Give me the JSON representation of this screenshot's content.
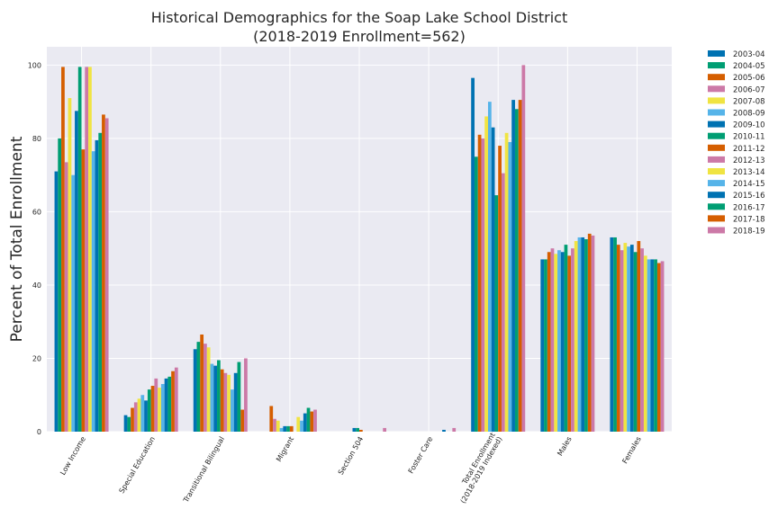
{
  "chart_data": {
    "type": "bar",
    "title": "Historical Demographics for the Soap Lake School District",
    "subtitle": "(2018-2019 Enrollment=562)",
    "xlabel": "",
    "ylabel": "Percent of Total Enrollment",
    "ylim": [
      0,
      105
    ],
    "yticks": [
      "0",
      "20",
      "40",
      "60",
      "80",
      "100"
    ],
    "grid": true,
    "legend_position": "outside-right",
    "categories": [
      [
        "Low Income"
      ],
      [
        "Special Education"
      ],
      [
        "Transitional Bilingual"
      ],
      [
        "Migrant"
      ],
      [
        "Section 504"
      ],
      [
        "Foster Care"
      ],
      [
        "Total Enrollment",
        "(2018-2019 Indexed)"
      ],
      [
        "Males"
      ],
      [
        "Females"
      ]
    ],
    "series": [
      {
        "name": "2003-04",
        "color": "#0072B2",
        "values": [
          71,
          4.5,
          22.5,
          0,
          0,
          0,
          96.5,
          47,
          53
        ]
      },
      {
        "name": "2004-05",
        "color": "#009E73",
        "values": [
          80,
          4,
          24.5,
          0,
          0,
          0,
          75,
          47,
          53
        ]
      },
      {
        "name": "2005-06",
        "color": "#D55E00",
        "values": [
          99.5,
          6.5,
          26.5,
          7,
          0,
          0,
          81,
          49,
          51
        ]
      },
      {
        "name": "2006-07",
        "color": "#CC79A7",
        "values": [
          73.5,
          8,
          24,
          3.5,
          0,
          0,
          80,
          50,
          49.5
        ]
      },
      {
        "name": "2007-08",
        "color": "#F0E442",
        "values": [
          91,
          9,
          23,
          3,
          0,
          0,
          86,
          48.5,
          51.5
        ]
      },
      {
        "name": "2008-09",
        "color": "#56B4E9",
        "values": [
          70,
          10,
          18.5,
          1,
          0,
          0,
          90,
          49.5,
          50.5
        ]
      },
      {
        "name": "2009-10",
        "color": "#0072B2",
        "values": [
          87.5,
          8.5,
          18,
          1.5,
          1,
          0,
          83,
          49,
          51
        ]
      },
      {
        "name": "2010-11",
        "color": "#009E73",
        "values": [
          99.5,
          11.5,
          19.5,
          1.5,
          1,
          0,
          64.5,
          51,
          49
        ]
      },
      {
        "name": "2011-12",
        "color": "#D55E00",
        "values": [
          77,
          12.5,
          17,
          1.5,
          0.5,
          0,
          78,
          48,
          52
        ]
      },
      {
        "name": "2012-13",
        "color": "#CC79A7",
        "values": [
          99.5,
          14.5,
          16,
          0,
          0,
          0,
          70.5,
          50,
          50
        ]
      },
      {
        "name": "2013-14",
        "color": "#F0E442",
        "values": [
          99.5,
          12,
          15.5,
          4,
          0,
          0,
          81.5,
          52,
          48
        ]
      },
      {
        "name": "2014-15",
        "color": "#56B4E9",
        "values": [
          76.5,
          13,
          11.5,
          3,
          0,
          0,
          79,
          53,
          47
        ]
      },
      {
        "name": "2015-16",
        "color": "#0072B2",
        "values": [
          79.5,
          14.5,
          16,
          5,
          0,
          0.5,
          90.5,
          53,
          47
        ]
      },
      {
        "name": "2016-17",
        "color": "#009E73",
        "values": [
          81.5,
          15,
          19,
          6.5,
          0,
          0,
          88,
          52.5,
          47
        ]
      },
      {
        "name": "2017-18",
        "color": "#D55E00",
        "values": [
          86.5,
          16.5,
          6,
          5.5,
          0,
          0,
          90.5,
          54,
          46
        ]
      },
      {
        "name": "2018-19",
        "color": "#CC79A7",
        "values": [
          85.5,
          17.5,
          20,
          6,
          1,
          1,
          100,
          53.5,
          46.5
        ]
      }
    ]
  }
}
